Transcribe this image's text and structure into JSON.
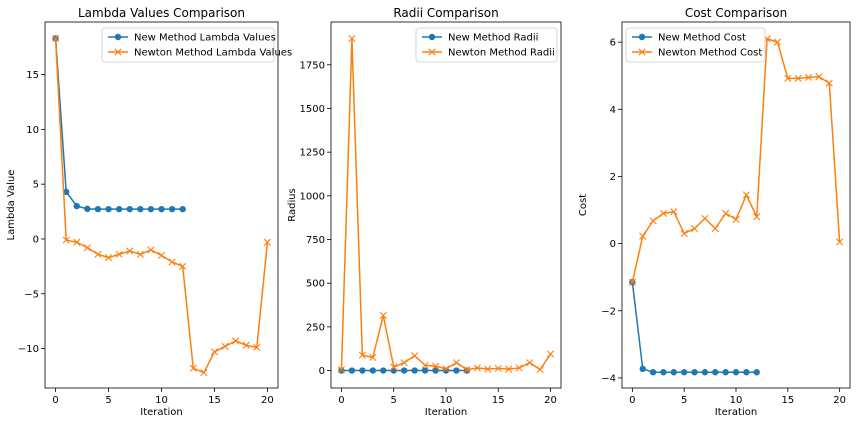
{
  "colors": {
    "new": "#1f77b4",
    "newton": "#ff7f0e"
  },
  "chart_data": [
    {
      "type": "line",
      "title": "Lambda Values Comparison",
      "xlabel": "Iteration",
      "ylabel": "Lambda Value",
      "xlim": [
        -1,
        21
      ],
      "ylim": [
        -13.6,
        19.8
      ],
      "xticks": [
        0,
        5,
        10,
        15,
        20
      ],
      "yticks": [
        -10,
        -5,
        0,
        5,
        10,
        15
      ],
      "legend_position": "top-right",
      "series": [
        {
          "name": "New Method Lambda Values",
          "marker": "circle",
          "x": [
            0,
            1,
            2,
            3,
            4,
            5,
            6,
            7,
            8,
            9,
            10,
            11,
            12
          ],
          "y": [
            18.3,
            4.3,
            3.0,
            2.75,
            2.72,
            2.72,
            2.72,
            2.72,
            2.72,
            2.72,
            2.72,
            2.72,
            2.72
          ]
        },
        {
          "name": "Newton Method Lambda Values",
          "marker": "x",
          "x": [
            0,
            1,
            2,
            3,
            4,
            5,
            6,
            7,
            8,
            9,
            10,
            11,
            12,
            13,
            14,
            15,
            16,
            17,
            18,
            19,
            20
          ],
          "y": [
            18.3,
            -0.1,
            -0.3,
            -0.8,
            -1.4,
            -1.7,
            -1.4,
            -1.1,
            -1.4,
            -1.0,
            -1.5,
            -2.1,
            -2.5,
            -11.8,
            -12.2,
            -10.3,
            -9.8,
            -9.3,
            -9.7,
            -9.9,
            -0.3
          ]
        }
      ]
    },
    {
      "type": "line",
      "title": "Radii Comparison",
      "xlabel": "Iteration",
      "ylabel": "Radius",
      "xlim": [
        -1,
        21
      ],
      "ylim": [
        -100,
        1995
      ],
      "xticks": [
        0,
        5,
        10,
        15,
        20
      ],
      "yticks": [
        0,
        250,
        500,
        750,
        1000,
        1250,
        1500,
        1750
      ],
      "legend_position": "top-right",
      "series": [
        {
          "name": "New Method Radii",
          "marker": "circle",
          "x": [
            0,
            1,
            2,
            3,
            4,
            5,
            6,
            7,
            8,
            9,
            10,
            11,
            12
          ],
          "y": [
            0,
            0,
            0,
            0,
            0,
            0,
            0,
            0,
            0,
            0,
            0,
            0,
            0
          ]
        },
        {
          "name": "Newton Method Radii",
          "marker": "x",
          "x": [
            0,
            1,
            2,
            3,
            4,
            5,
            6,
            7,
            8,
            9,
            10,
            11,
            12,
            13,
            14,
            15,
            16,
            17,
            18,
            19,
            20
          ],
          "y": [
            5,
            1900,
            88,
            75,
            315,
            20,
            45,
            85,
            30,
            25,
            10,
            45,
            5,
            15,
            8,
            12,
            8,
            15,
            45,
            5,
            95
          ]
        }
      ]
    },
    {
      "type": "line",
      "title": "Cost Comparison",
      "xlabel": "Iteration",
      "ylabel": "Cost",
      "xlim": [
        -1,
        21
      ],
      "ylim": [
        -4.3,
        6.6
      ],
      "xticks": [
        0,
        5,
        10,
        15,
        20
      ],
      "yticks": [
        -4,
        -2,
        0,
        2,
        4,
        6
      ],
      "legend_position": "top-left",
      "series": [
        {
          "name": "New Method Cost",
          "marker": "circle",
          "x": [
            0,
            1,
            2,
            3,
            4,
            5,
            6,
            7,
            8,
            9,
            10,
            11,
            12
          ],
          "y": [
            -1.15,
            -3.73,
            -3.83,
            -3.83,
            -3.83,
            -3.83,
            -3.83,
            -3.83,
            -3.83,
            -3.83,
            -3.83,
            -3.83,
            -3.83
          ]
        },
        {
          "name": "Newton Method Cost",
          "marker": "x",
          "x": [
            0,
            1,
            2,
            3,
            4,
            5,
            6,
            7,
            8,
            9,
            10,
            11,
            12,
            13,
            14,
            15,
            16,
            17,
            18,
            19,
            20
          ],
          "y": [
            -1.15,
            0.22,
            0.68,
            0.9,
            0.95,
            0.3,
            0.45,
            0.75,
            0.45,
            0.9,
            0.72,
            1.45,
            0.8,
            6.1,
            6.0,
            4.92,
            4.92,
            4.95,
            4.97,
            4.78,
            0.05
          ]
        }
      ]
    }
  ]
}
